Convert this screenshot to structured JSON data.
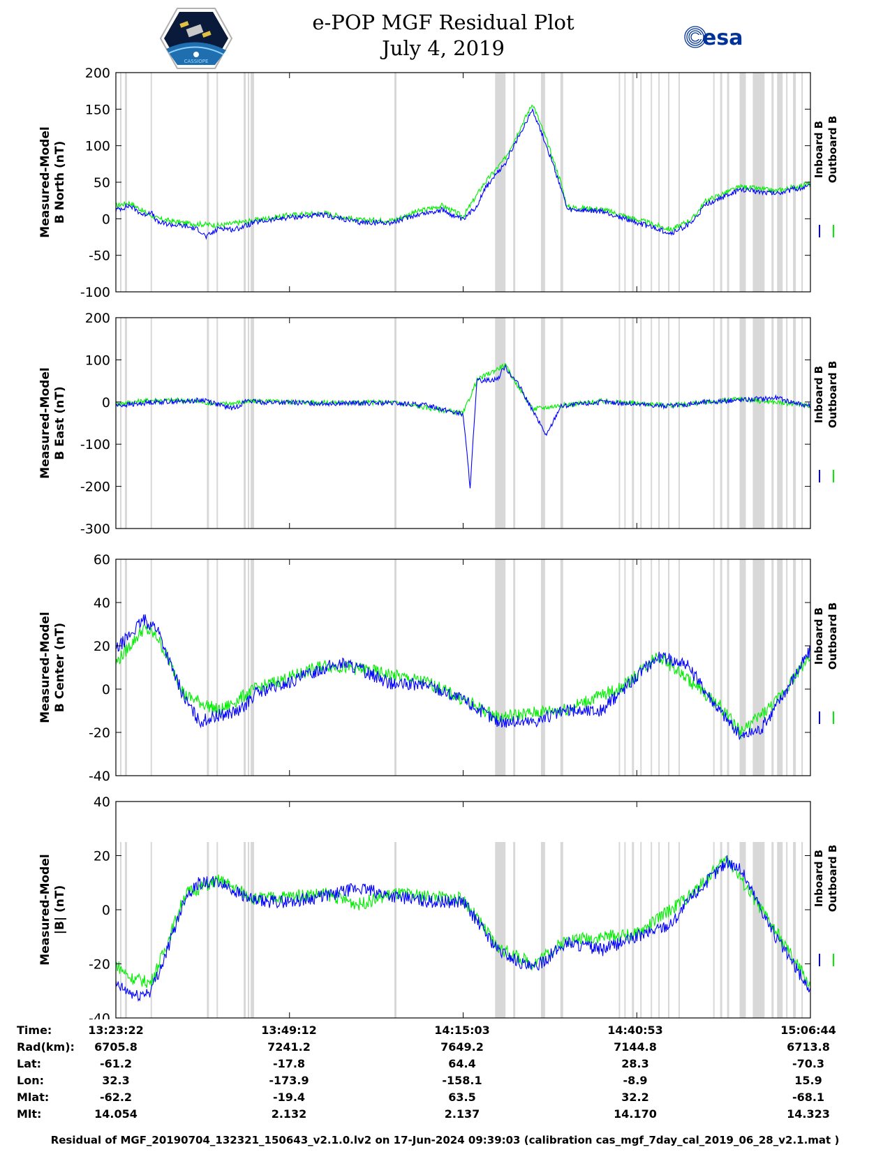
{
  "header": {
    "title_line1": "e-POP MGF Residual Plot",
    "title_line2": "July 4, 2019",
    "logo_left_text": "CASSIOPE",
    "logo_right_text": "esa"
  },
  "colors": {
    "inboard": "#0000ff",
    "outboard": "#00ee00",
    "gap_shading": "#d8d8d8"
  },
  "chart_data": [
    {
      "type": "line",
      "ylabel_line1": "Measured-Model",
      "ylabel_line2": "B North (nT)",
      "ylim": [
        -100,
        200
      ],
      "yticks": [
        -100,
        -50,
        0,
        50,
        100,
        150,
        200
      ],
      "series": [
        {
          "name": "Inboard B",
          "color": "#0000ff",
          "points": [
            [
              0,
              12
            ],
            [
              0.02,
              18
            ],
            [
              0.04,
              5
            ],
            [
              0.05,
              10
            ],
            [
              0.06,
              -5
            ],
            [
              0.08,
              -8
            ],
            [
              0.1,
              -10
            ],
            [
              0.12,
              -15
            ],
            [
              0.13,
              -25
            ],
            [
              0.15,
              -12
            ],
            [
              0.17,
              -15
            ],
            [
              0.2,
              -5
            ],
            [
              0.25,
              2
            ],
            [
              0.3,
              5
            ],
            [
              0.35,
              -5
            ],
            [
              0.4,
              -5
            ],
            [
              0.43,
              5
            ],
            [
              0.47,
              12
            ],
            [
              0.5,
              -2
            ],
            [
              0.52,
              18
            ],
            [
              0.53,
              40
            ],
            [
              0.56,
              75
            ],
            [
              0.6,
              150
            ],
            [
              0.62,
              100
            ],
            [
              0.64,
              45
            ],
            [
              0.65,
              12
            ],
            [
              0.7,
              10
            ],
            [
              0.75,
              -5
            ],
            [
              0.8,
              -20
            ],
            [
              0.83,
              -5
            ],
            [
              0.85,
              20
            ],
            [
              0.9,
              40
            ],
            [
              0.95,
              35
            ],
            [
              1.0,
              45
            ]
          ]
        },
        {
          "name": "Outboard B",
          "color": "#00ee00",
          "points": [
            [
              0,
              18
            ],
            [
              0.02,
              22
            ],
            [
              0.04,
              10
            ],
            [
              0.06,
              0
            ],
            [
              0.1,
              -6
            ],
            [
              0.15,
              -9
            ],
            [
              0.2,
              -2
            ],
            [
              0.25,
              5
            ],
            [
              0.3,
              8
            ],
            [
              0.35,
              -2
            ],
            [
              0.4,
              -2
            ],
            [
              0.43,
              9
            ],
            [
              0.47,
              18
            ],
            [
              0.5,
              3
            ],
            [
              0.53,
              48
            ],
            [
              0.56,
              82
            ],
            [
              0.6,
              158
            ],
            [
              0.62,
              108
            ],
            [
              0.64,
              52
            ],
            [
              0.65,
              16
            ],
            [
              0.7,
              13
            ],
            [
              0.75,
              -1
            ],
            [
              0.8,
              -15
            ],
            [
              0.83,
              0
            ],
            [
              0.85,
              25
            ],
            [
              0.9,
              44
            ],
            [
              0.95,
              38
            ],
            [
              1.0,
              48
            ]
          ]
        }
      ]
    },
    {
      "type": "line",
      "ylabel_line1": "Measured-Model",
      "ylabel_line2": "B East (nT)",
      "ylim": [
        -300,
        200
      ],
      "yticks": [
        -300,
        -200,
        -100,
        0,
        100,
        200
      ],
      "series": [
        {
          "name": "Inboard B",
          "color": "#0000ff",
          "points": [
            [
              0,
              -8
            ],
            [
              0.03,
              -5
            ],
            [
              0.05,
              0
            ],
            [
              0.1,
              2
            ],
            [
              0.13,
              5
            ],
            [
              0.15,
              -8
            ],
            [
              0.17,
              -15
            ],
            [
              0.19,
              5
            ],
            [
              0.2,
              0
            ],
            [
              0.3,
              -3
            ],
            [
              0.4,
              -3
            ],
            [
              0.45,
              -8
            ],
            [
              0.5,
              -30
            ],
            [
              0.51,
              -200
            ],
            [
              0.52,
              50
            ],
            [
              0.55,
              55
            ],
            [
              0.56,
              85
            ],
            [
              0.58,
              40
            ],
            [
              0.6,
              -20
            ],
            [
              0.62,
              -80
            ],
            [
              0.64,
              -10
            ],
            [
              0.7,
              0
            ],
            [
              0.75,
              -5
            ],
            [
              0.8,
              -10
            ],
            [
              0.85,
              0
            ],
            [
              0.9,
              5
            ],
            [
              0.95,
              10
            ],
            [
              1.0,
              -10
            ]
          ]
        },
        {
          "name": "Outboard B",
          "color": "#00ee00",
          "points": [
            [
              0,
              -4
            ],
            [
              0.05,
              4
            ],
            [
              0.1,
              4
            ],
            [
              0.15,
              -5
            ],
            [
              0.2,
              2
            ],
            [
              0.3,
              -1
            ],
            [
              0.4,
              -1
            ],
            [
              0.5,
              -27
            ],
            [
              0.52,
              52
            ],
            [
              0.56,
              88
            ],
            [
              0.6,
              -17
            ],
            [
              0.64,
              -8
            ],
            [
              0.7,
              2
            ],
            [
              0.8,
              -8
            ],
            [
              0.9,
              7
            ],
            [
              1.0,
              -8
            ]
          ]
        }
      ]
    },
    {
      "type": "line",
      "ylabel_line1": "Measured-Model",
      "ylabel_line2": "B Center (nT)",
      "ylim": [
        -40,
        60
      ],
      "yticks": [
        -40,
        -20,
        0,
        20,
        40,
        60
      ],
      "series": [
        {
          "name": "Inboard B",
          "color": "#0000ff",
          "points": [
            [
              0,
              18
            ],
            [
              0.02,
              25
            ],
            [
              0.04,
              32
            ],
            [
              0.06,
              28
            ],
            [
              0.08,
              10
            ],
            [
              0.1,
              -5
            ],
            [
              0.12,
              -15
            ],
            [
              0.15,
              -12
            ],
            [
              0.18,
              -10
            ],
            [
              0.2,
              -2
            ],
            [
              0.25,
              3
            ],
            [
              0.3,
              10
            ],
            [
              0.33,
              12
            ],
            [
              0.36,
              8
            ],
            [
              0.4,
              2
            ],
            [
              0.45,
              2
            ],
            [
              0.5,
              -5
            ],
            [
              0.55,
              -15
            ],
            [
              0.6,
              -15
            ],
            [
              0.65,
              -10
            ],
            [
              0.7,
              -10
            ],
            [
              0.73,
              0
            ],
            [
              0.78,
              15
            ],
            [
              0.82,
              12
            ],
            [
              0.87,
              -10
            ],
            [
              0.9,
              -22
            ],
            [
              0.93,
              -18
            ],
            [
              0.95,
              -8
            ],
            [
              1.0,
              18
            ]
          ]
        },
        {
          "name": "Outboard B",
          "color": "#00ee00",
          "points": [
            [
              0,
              12
            ],
            [
              0.02,
              20
            ],
            [
              0.04,
              28
            ],
            [
              0.06,
              24
            ],
            [
              0.1,
              -3
            ],
            [
              0.15,
              -10
            ],
            [
              0.2,
              0
            ],
            [
              0.3,
              11
            ],
            [
              0.36,
              9
            ],
            [
              0.45,
              3
            ],
            [
              0.55,
              -13
            ],
            [
              0.65,
              -9
            ],
            [
              0.73,
              1
            ],
            [
              0.78,
              16
            ],
            [
              0.87,
              -8
            ],
            [
              0.9,
              -20
            ],
            [
              0.95,
              -6
            ],
            [
              1.0,
              16
            ]
          ]
        }
      ]
    },
    {
      "type": "line",
      "ylabel_line1": "Measured-Model",
      "ylabel_line2": "|B| (nT)",
      "ylim": [
        -40,
        40
      ],
      "yticks": [
        -40,
        -20,
        0,
        20,
        40
      ],
      "series": [
        {
          "name": "Inboard B",
          "color": "#0000ff",
          "points": [
            [
              0,
              -28
            ],
            [
              0.03,
              -32
            ],
            [
              0.05,
              -30
            ],
            [
              0.07,
              -18
            ],
            [
              0.1,
              5
            ],
            [
              0.12,
              10
            ],
            [
              0.15,
              10
            ],
            [
              0.2,
              3
            ],
            [
              0.25,
              3
            ],
            [
              0.3,
              5
            ],
            [
              0.35,
              8
            ],
            [
              0.4,
              5
            ],
            [
              0.45,
              3
            ],
            [
              0.5,
              3
            ],
            [
              0.55,
              -15
            ],
            [
              0.6,
              -22
            ],
            [
              0.65,
              -12
            ],
            [
              0.7,
              -15
            ],
            [
              0.75,
              -10
            ],
            [
              0.8,
              -5
            ],
            [
              0.83,
              5
            ],
            [
              0.88,
              18
            ],
            [
              0.9,
              15
            ],
            [
              0.95,
              -10
            ],
            [
              1.0,
              -30
            ]
          ]
        },
        {
          "name": "Outboard B",
          "color": "#00ee00",
          "points": [
            [
              0,
              -20
            ],
            [
              0.02,
              -25
            ],
            [
              0.05,
              -27
            ],
            [
              0.07,
              -15
            ],
            [
              0.1,
              6
            ],
            [
              0.15,
              11
            ],
            [
              0.2,
              4
            ],
            [
              0.3,
              6
            ],
            [
              0.35,
              2
            ],
            [
              0.4,
              6
            ],
            [
              0.5,
              4
            ],
            [
              0.55,
              -14
            ],
            [
              0.6,
              -20
            ],
            [
              0.65,
              -11
            ],
            [
              0.75,
              -9
            ],
            [
              0.83,
              6
            ],
            [
              0.88,
              19
            ],
            [
              0.95,
              -8
            ],
            [
              1.0,
              -28
            ]
          ]
        }
      ]
    }
  ],
  "gap_regions": [
    [
      0.006,
      0.008
    ],
    [
      0.013,
      0.016
    ],
    [
      0.05,
      0.052
    ],
    [
      0.131,
      0.134
    ],
    [
      0.145,
      0.147
    ],
    [
      0.184,
      0.187
    ],
    [
      0.19,
      0.19
    ],
    [
      0.194,
      0.199
    ],
    [
      0.401,
      0.404
    ],
    [
      0.546,
      0.561
    ],
    [
      0.572,
      0.575
    ],
    [
      0.612,
      0.618
    ],
    [
      0.64,
      0.644
    ],
    [
      0.724,
      0.726
    ],
    [
      0.732,
      0.734
    ],
    [
      0.743,
      0.746
    ],
    [
      0.755,
      0.757
    ],
    [
      0.77,
      0.772
    ],
    [
      0.781,
      0.783
    ],
    [
      0.795,
      0.797
    ],
    [
      0.81,
      0.812
    ],
    [
      0.86,
      0.862
    ],
    [
      0.87,
      0.873
    ],
    [
      0.88,
      0.883
    ],
    [
      0.898,
      0.907
    ],
    [
      0.917,
      0.934
    ],
    [
      0.944,
      0.947
    ],
    [
      0.952,
      0.96
    ],
    [
      0.965,
      0.967
    ],
    [
      0.975,
      0.979
    ],
    [
      0.987,
      0.989
    ]
  ],
  "x_ticks_frac": [
    0,
    0.25,
    0.5,
    0.75,
    1.0
  ],
  "info": {
    "rows": [
      {
        "label": "Time:",
        "values": [
          "13:23:22",
          "13:49:12",
          "14:15:03",
          "14:40:53",
          "15:06:44"
        ]
      },
      {
        "label": "Rad(km):",
        "values": [
          "6705.8",
          "7241.2",
          "7649.2",
          "7144.8",
          "6713.8"
        ]
      },
      {
        "label": "Lat:",
        "values": [
          "-61.2",
          "-17.8",
          "64.4",
          "28.3",
          "-70.3"
        ]
      },
      {
        "label": "Lon:",
        "values": [
          "32.3",
          "-173.9",
          "-158.1",
          "-8.9",
          "15.9"
        ]
      },
      {
        "label": "Mlat:",
        "values": [
          "-62.2",
          "-19.4",
          "63.5",
          "32.2",
          "-68.1"
        ]
      },
      {
        "label": "Mlt:",
        "values": [
          "14.054",
          "2.132",
          "2.137",
          "14.170",
          "14.323"
        ]
      }
    ]
  },
  "footer": "Residual of MGF_20190704_132321_150643_v2.1.0.lv2 on 17-Jun-2024 09:39:03 (calibration cas_mgf_7day_cal_2019_06_28_v2.1.mat )"
}
